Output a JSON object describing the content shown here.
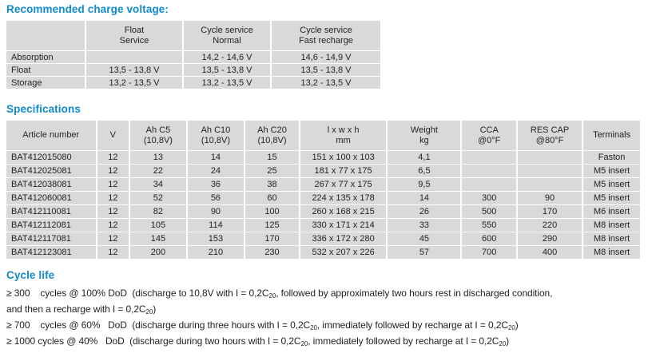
{
  "colors": {
    "heading": "#1089cd",
    "cell_bg": "#d9d9d9",
    "text": "#231f20",
    "page_bg": "#ffffff"
  },
  "charge_voltage": {
    "title": "Recommended charge voltage:",
    "header": [
      "",
      "Float\nService",
      "Cycle service\nNormal",
      "Cycle service\nFast recharge"
    ],
    "rows": [
      [
        "Absorption",
        "",
        "14,2 - 14,6 V",
        "14,6 - 14,9 V"
      ],
      [
        "Float",
        "13,5 - 13,8 V",
        "13,5 - 13,8 V",
        "13,5 - 13,8 V"
      ],
      [
        "Storage",
        "13,2 - 13,5 V",
        "13,2 - 13,5 V",
        "13,2 - 13,5 V"
      ]
    ]
  },
  "specifications": {
    "title": "Specifications",
    "header": [
      "Article number",
      "V",
      "Ah C5\n(10,8V)",
      "Ah C10\n(10,8V)",
      "Ah C20\n(10,8V)",
      "l x w x h\nmm",
      "Weight\nkg",
      "CCA\n@0°F",
      "RES CAP\n@80°F",
      "Terminals"
    ],
    "rows": [
      [
        "BAT412015080",
        "12",
        "13",
        "14",
        "15",
        "151 x 100 x 103",
        "4,1",
        "",
        "",
        "Faston"
      ],
      [
        "BAT412025081",
        "12",
        "22",
        "24",
        "25",
        "181 x 77 x 175",
        "6,5",
        "",
        "",
        "M5 insert"
      ],
      [
        "BAT412038081",
        "12",
        "34",
        "36",
        "38",
        "267 x 77 x 175",
        "9,5",
        "",
        "",
        "M5 insert"
      ],
      [
        "BAT412060081",
        "12",
        "52",
        "56",
        "60",
        "224 x 135 x 178",
        "14",
        "300",
        "90",
        "M5 insert"
      ],
      [
        "BAT412110081",
        "12",
        "82",
        "90",
        "100",
        "260 x 168 x 215",
        "26",
        "500",
        "170",
        "M6 insert"
      ],
      [
        "BAT412112081",
        "12",
        "105",
        "114",
        "125",
        "330 x 171 x 214",
        "33",
        "550",
        "220",
        "M8 insert"
      ],
      [
        "BAT412117081",
        "12",
        "145",
        "153",
        "170",
        "336 x 172 x 280",
        "45",
        "600",
        "290",
        "M8 insert"
      ],
      [
        "BAT412123081",
        "12",
        "200",
        "210",
        "230",
        "532 x 207 x 226",
        "57",
        "700",
        "400",
        "M8 insert"
      ]
    ]
  },
  "cycle_life": {
    "title": "Cycle life",
    "lines": [
      [
        {
          "t": "≥ 300    cycles @ 100% DoD  (discharge to 10,8V with I = 0,2C"
        },
        {
          "t": "20",
          "sub": true
        },
        {
          "t": ", followed by approximately two hours rest in discharged condition,"
        }
      ],
      [
        {
          "t": "and then a recharge with I = 0,2C"
        },
        {
          "t": "20",
          "sub": true
        },
        {
          "t": ")"
        }
      ],
      [
        {
          "t": "≥ 700    cycles @ 60%   DoD  (discharge during three hours with I = 0,2C"
        },
        {
          "t": "20",
          "sub": true
        },
        {
          "t": ", immediately followed by recharge at I = 0,2C"
        },
        {
          "t": "20",
          "sub": true
        },
        {
          "t": ")"
        }
      ],
      [
        {
          "t": "≥ 1000 cycles @ 40%   DoD  (discharge during two hours with I = 0,2C"
        },
        {
          "t": "20",
          "sub": true
        },
        {
          "t": ", immediately followed by recharge at I = 0,2C"
        },
        {
          "t": "20",
          "sub": true
        },
        {
          "t": ")"
        }
      ]
    ]
  }
}
